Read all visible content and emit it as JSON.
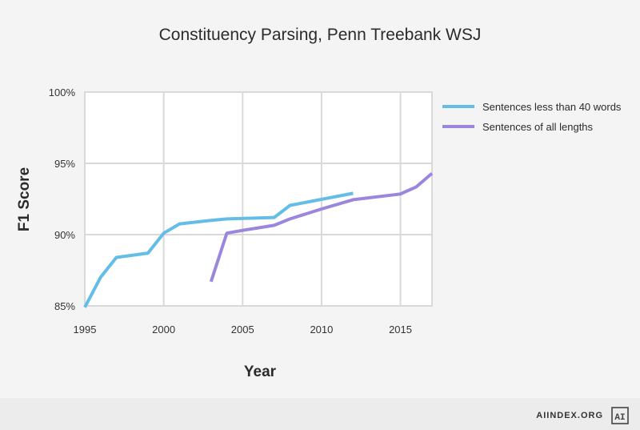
{
  "chart_data": {
    "type": "line",
    "title": "Constituency Parsing, Penn Treebank WSJ",
    "xlabel": "Year",
    "ylabel": "F1 Score",
    "xlim": [
      1995,
      2017
    ],
    "ylim": [
      85,
      100
    ],
    "x_ticks": [
      1995,
      2000,
      2005,
      2010,
      2015
    ],
    "x_tick_labels": [
      "1995",
      "2000",
      "2005",
      "2010",
      "2015"
    ],
    "y_ticks": [
      85,
      90,
      95,
      100
    ],
    "y_tick_labels": [
      "85%",
      "90%",
      "95%",
      "100%"
    ],
    "grid": true,
    "legend_position": "right",
    "series": [
      {
        "name": "Sentences less than 40 words",
        "color": "#63bde7",
        "points": [
          [
            1995,
            84.9
          ],
          [
            1996,
            87.0
          ],
          [
            1997,
            88.4
          ],
          [
            1999,
            88.7
          ],
          [
            2000,
            90.1
          ],
          [
            2001,
            90.75
          ],
          [
            2003,
            91.0
          ],
          [
            2004,
            91.1
          ],
          [
            2007,
            91.2
          ],
          [
            2008,
            92.05
          ],
          [
            2012,
            92.9
          ]
        ]
      },
      {
        "name": "Sentences of all lengths",
        "color": "#9b86de",
        "points": [
          [
            2003,
            86.7
          ],
          [
            2004,
            90.1
          ],
          [
            2005,
            90.3
          ],
          [
            2007,
            90.65
          ],
          [
            2008,
            91.1
          ],
          [
            2010,
            91.8
          ],
          [
            2012,
            92.45
          ],
          [
            2015,
            92.85
          ],
          [
            2016,
            93.35
          ],
          [
            2017,
            94.3
          ]
        ]
      }
    ]
  },
  "footer": {
    "site": "AIINDEX.ORG",
    "logo_text": "AI"
  }
}
